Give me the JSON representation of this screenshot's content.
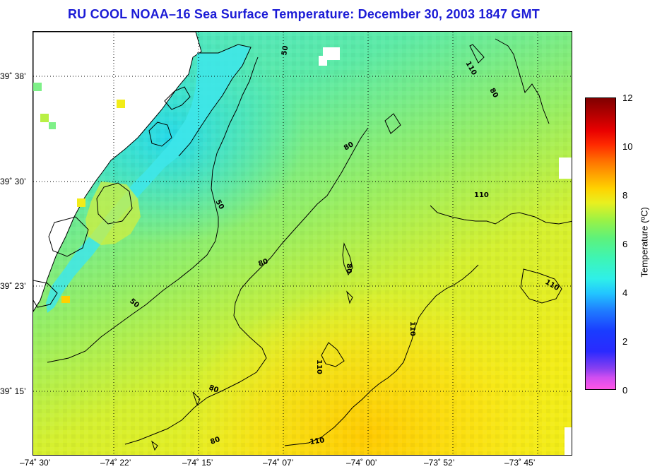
{
  "title": "RU COOL  NOAA–16  Sea Surface Temperature:  December 30, 2003 1847 GMT",
  "lat_labels": [
    "39˚ 38’",
    "39˚ 30’",
    "39˚ 23’",
    "39˚ 15’"
  ],
  "lon_labels": [
    "–74˚ 30’",
    "–74˚ 22’",
    "–74˚ 15’",
    "–74˚ 07’",
    "–74˚ 00’",
    "–73˚ 52’",
    "–73˚ 45’"
  ],
  "contour_labels": [
    "50",
    "50",
    "50",
    "80",
    "80",
    "80",
    "80",
    "80",
    "80",
    "110",
    "110",
    "110",
    "110",
    "110",
    "110"
  ],
  "colorbar": {
    "label": "Temperature (ºC)",
    "ticks": [
      "0",
      "2",
      "4",
      "6",
      "8",
      "10",
      "12"
    ],
    "min": 0,
    "max": 12
  },
  "colors": {
    "title": "#1b1bd6",
    "land": "#ffffff",
    "water_cool": "#48e2c8",
    "water_mid": "#7ef08a",
    "water_warm": "#f0f020",
    "water_hot": "#ffd000"
  }
}
